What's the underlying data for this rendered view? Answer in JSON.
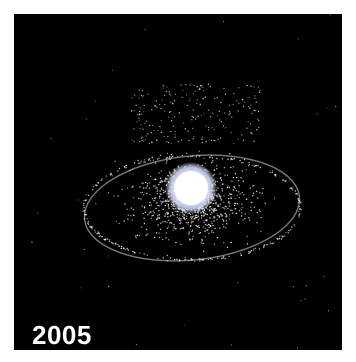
{
  "caption": {
    "year": "2005"
  },
  "colors": {
    "background": "#000000",
    "debris": "#e8e8e8",
    "planet_core": "#ffffff",
    "planet_tint": "#9bb6ff",
    "frame": "#ffffff"
  },
  "icons": {
    "planet": "earth-glow-icon",
    "debris": "orbital-debris-dots"
  }
}
